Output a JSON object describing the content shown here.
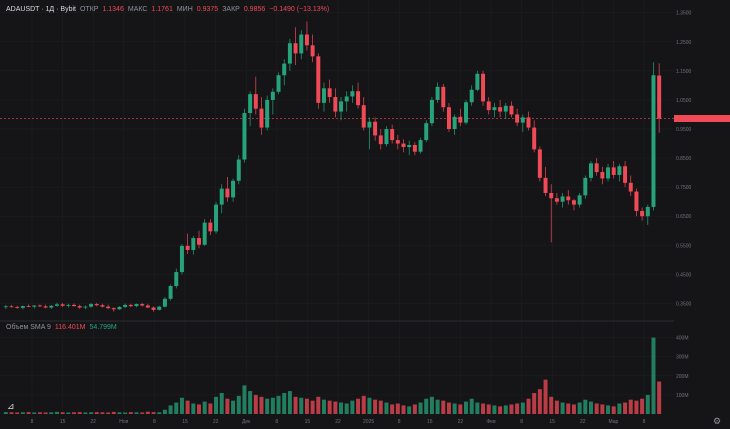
{
  "legend": {
    "symbol": "ADAUSDT · 1Д · Bybit",
    "o_label": "ОТКР",
    "o_value": "1.1346",
    "h_label": "МАКС",
    "h_value": "1.1761",
    "l_label": "МИН",
    "l_value": "0.9375",
    "c_label": "ЗАКР",
    "c_value": "0.9856",
    "change": "−0.1490 (−13.13%)"
  },
  "volume_legend": {
    "label": "Объем SMA 9",
    "value1": "116.401M",
    "value2": "54.799M"
  },
  "colors": {
    "up": "#26a37a",
    "down": "#f04a57",
    "background": "#151517",
    "grid": "#1f2024"
  },
  "price_axis_labels": [
    "1.3500",
    "1.2500",
    "1.1500",
    "1.0500",
    "0.9500",
    "0.8500",
    "0.7500",
    "0.6500",
    "0.5500",
    "0.4500",
    "0.3500"
  ],
  "volume_axis_labels": [
    "400M",
    "300M",
    "200M",
    "100M"
  ],
  "time_axis_labels": [
    "8",
    "15",
    "22",
    "Ноя",
    "8",
    "15",
    "22",
    "Дек",
    "8",
    "15",
    "22",
    "2025",
    "8",
    "15",
    "22",
    "Фев",
    "8",
    "15",
    "22",
    "Мар",
    "8"
  ],
  "chart_data": {
    "type": "candlestick",
    "ylim": [
      0.3,
      1.38
    ],
    "last_price": 0.9856,
    "candles": [
      [
        0.339,
        0.345,
        0.331,
        0.34
      ],
      [
        0.34,
        0.345,
        0.336,
        0.338
      ],
      [
        0.338,
        0.342,
        0.332,
        0.335
      ],
      [
        0.335,
        0.343,
        0.33,
        0.341
      ],
      [
        0.341,
        0.347,
        0.337,
        0.339
      ],
      [
        0.339,
        0.344,
        0.333,
        0.343
      ],
      [
        0.343,
        0.347,
        0.338,
        0.34
      ],
      [
        0.34,
        0.346,
        0.333,
        0.336
      ],
      [
        0.336,
        0.345,
        0.331,
        0.342
      ],
      [
        0.342,
        0.353,
        0.339,
        0.347
      ],
      [
        0.347,
        0.352,
        0.338,
        0.342
      ],
      [
        0.342,
        0.349,
        0.336,
        0.345
      ],
      [
        0.345,
        0.35,
        0.339,
        0.341
      ],
      [
        0.341,
        0.346,
        0.332,
        0.336
      ],
      [
        0.336,
        0.343,
        0.33,
        0.339
      ],
      [
        0.339,
        0.352,
        0.335,
        0.348
      ],
      [
        0.348,
        0.352,
        0.34,
        0.344
      ],
      [
        0.344,
        0.349,
        0.336,
        0.339
      ],
      [
        0.339,
        0.346,
        0.33,
        0.334
      ],
      [
        0.334,
        0.337,
        0.322,
        0.33
      ],
      [
        0.33,
        0.341,
        0.328,
        0.338
      ],
      [
        0.338,
        0.35,
        0.334,
        0.345
      ],
      [
        0.345,
        0.349,
        0.337,
        0.341
      ],
      [
        0.341,
        0.35,
        0.337,
        0.348
      ],
      [
        0.348,
        0.352,
        0.339,
        0.343
      ],
      [
        0.343,
        0.349,
        0.334,
        0.336
      ],
      [
        0.336,
        0.34,
        0.322,
        0.328
      ],
      [
        0.328,
        0.342,
        0.326,
        0.339
      ],
      [
        0.339,
        0.372,
        0.336,
        0.366
      ],
      [
        0.366,
        0.415,
        0.36,
        0.41
      ],
      [
        0.41,
        0.47,
        0.402,
        0.458
      ],
      [
        0.458,
        0.555,
        0.45,
        0.548
      ],
      [
        0.548,
        0.59,
        0.52,
        0.534
      ],
      [
        0.534,
        0.582,
        0.518,
        0.575
      ],
      [
        0.575,
        0.6,
        0.54,
        0.552
      ],
      [
        0.552,
        0.64,
        0.548,
        0.628
      ],
      [
        0.628,
        0.64,
        0.585,
        0.598
      ],
      [
        0.598,
        0.7,
        0.59,
        0.69
      ],
      [
        0.69,
        0.76,
        0.66,
        0.745
      ],
      [
        0.745,
        0.785,
        0.7,
        0.715
      ],
      [
        0.715,
        0.78,
        0.7,
        0.772
      ],
      [
        0.772,
        0.86,
        0.76,
        0.845
      ],
      [
        0.845,
        1.02,
        0.835,
        1.005
      ],
      [
        1.005,
        1.08,
        0.96,
        1.07
      ],
      [
        1.07,
        1.13,
        1.0,
        1.02
      ],
      [
        1.02,
        1.06,
        0.93,
        0.955
      ],
      [
        0.955,
        1.065,
        0.945,
        1.05
      ],
      [
        1.05,
        1.09,
        1.0,
        1.078
      ],
      [
        1.078,
        1.145,
        1.07,
        1.135
      ],
      [
        1.135,
        1.19,
        1.1,
        1.175
      ],
      [
        1.175,
        1.26,
        1.15,
        1.245
      ],
      [
        1.245,
        1.3,
        1.17,
        1.21
      ],
      [
        1.21,
        1.29,
        1.19,
        1.275
      ],
      [
        1.275,
        1.32,
        1.22,
        1.238
      ],
      [
        1.238,
        1.275,
        1.18,
        1.2
      ],
      [
        1.2,
        1.21,
        1.02,
        1.04
      ],
      [
        1.04,
        1.11,
        1.01,
        1.09
      ],
      [
        1.09,
        1.12,
        1.04,
        1.06
      ],
      [
        1.06,
        1.09,
        0.99,
        1.01
      ],
      [
        1.01,
        1.06,
        0.98,
        1.045
      ],
      [
        1.045,
        1.08,
        1.01,
        1.062
      ],
      [
        1.062,
        1.1,
        1.04,
        1.08
      ],
      [
        1.08,
        1.11,
        1.02,
        1.032
      ],
      [
        1.032,
        1.06,
        0.945,
        0.955
      ],
      [
        0.955,
        0.99,
        0.88,
        0.975
      ],
      [
        0.975,
        0.99,
        0.91,
        0.928
      ],
      [
        0.928,
        0.95,
        0.88,
        0.898
      ],
      [
        0.898,
        0.96,
        0.89,
        0.95
      ],
      [
        0.95,
        0.965,
        0.9,
        0.912
      ],
      [
        0.912,
        0.93,
        0.88,
        0.9
      ],
      [
        0.9,
        0.915,
        0.87,
        0.888
      ],
      [
        0.888,
        0.91,
        0.86,
        0.895
      ],
      [
        0.895,
        0.905,
        0.86,
        0.872
      ],
      [
        0.872,
        0.92,
        0.865,
        0.912
      ],
      [
        0.912,
        0.98,
        0.905,
        0.97
      ],
      [
        0.97,
        1.06,
        0.96,
        1.05
      ],
      [
        1.05,
        1.11,
        1.04,
        1.095
      ],
      [
        1.095,
        1.105,
        1.01,
        1.025
      ],
      [
        1.025,
        1.04,
        0.94,
        0.95
      ],
      [
        0.95,
        1.0,
        0.93,
        0.992
      ],
      [
        0.992,
        1.02,
        0.96,
        0.972
      ],
      [
        0.972,
        1.05,
        0.965,
        1.042
      ],
      [
        1.042,
        1.1,
        1.03,
        1.085
      ],
      [
        1.085,
        1.15,
        1.08,
        1.14
      ],
      [
        1.14,
        1.15,
        1.03,
        1.045
      ],
      [
        1.045,
        1.06,
        1.0,
        1.015
      ],
      [
        1.015,
        1.04,
        0.99,
        1.025
      ],
      [
        1.025,
        1.05,
        0.99,
        1.01
      ],
      [
        1.01,
        1.04,
        0.985,
        1.03
      ],
      [
        1.03,
        1.045,
        0.99,
        1.0
      ],
      [
        1.0,
        1.02,
        0.96,
        0.972
      ],
      [
        0.972,
        1.0,
        0.94,
        0.99
      ],
      [
        0.99,
        1.01,
        0.945,
        0.955
      ],
      [
        0.955,
        0.98,
        0.87,
        0.88
      ],
      [
        0.88,
        0.89,
        0.77,
        0.782
      ],
      [
        0.782,
        0.82,
        0.72,
        0.73
      ],
      [
        0.73,
        0.76,
        0.56,
        0.712
      ],
      [
        0.712,
        0.73,
        0.69,
        0.7
      ],
      [
        0.7,
        0.73,
        0.68,
        0.718
      ],
      [
        0.718,
        0.74,
        0.69,
        0.705
      ],
      [
        0.705,
        0.71,
        0.67,
        0.69
      ],
      [
        0.69,
        0.73,
        0.68,
        0.722
      ],
      [
        0.722,
        0.79,
        0.71,
        0.782
      ],
      [
        0.782,
        0.84,
        0.77,
        0.832
      ],
      [
        0.832,
        0.85,
        0.79,
        0.802
      ],
      [
        0.802,
        0.82,
        0.76,
        0.78
      ],
      [
        0.78,
        0.83,
        0.77,
        0.818
      ],
      [
        0.818,
        0.84,
        0.78,
        0.792
      ],
      [
        0.792,
        0.83,
        0.77,
        0.822
      ],
      [
        0.822,
        0.84,
        0.75,
        0.765
      ],
      [
        0.765,
        0.79,
        0.72,
        0.735
      ],
      [
        0.735,
        0.745,
        0.65,
        0.668
      ],
      [
        0.668,
        0.68,
        0.635,
        0.65
      ],
      [
        0.65,
        0.69,
        0.62,
        0.682
      ],
      [
        0.682,
        1.18,
        0.67,
        1.135
      ],
      [
        1.134,
        1.176,
        0.937,
        0.986
      ]
    ],
    "volumes": [
      10,
      9,
      8,
      9,
      10,
      8,
      9,
      8,
      9,
      11,
      9,
      8,
      9,
      10,
      8,
      9,
      10,
      9,
      8,
      11,
      9,
      8,
      10,
      9,
      8,
      12,
      10,
      9,
      22,
      45,
      60,
      85,
      70,
      55,
      50,
      65,
      55,
      90,
      110,
      80,
      70,
      95,
      150,
      120,
      100,
      90,
      80,
      85,
      95,
      110,
      120,
      90,
      85,
      80,
      70,
      90,
      75,
      70,
      65,
      60,
      55,
      70,
      80,
      95,
      85,
      75,
      70,
      60,
      50,
      55,
      45,
      40,
      50,
      60,
      80,
      90,
      75,
      70,
      60,
      55,
      50,
      65,
      80,
      60,
      55,
      50,
      45,
      40,
      45,
      50,
      55,
      60,
      80,
      110,
      130,
      180,
      90,
      70,
      60,
      55,
      50,
      60,
      75,
      65,
      55,
      50,
      45,
      40,
      55,
      60,
      75,
      70,
      80,
      100,
      400,
      170
    ],
    "volume_ylim": [
      0,
      440
    ]
  }
}
